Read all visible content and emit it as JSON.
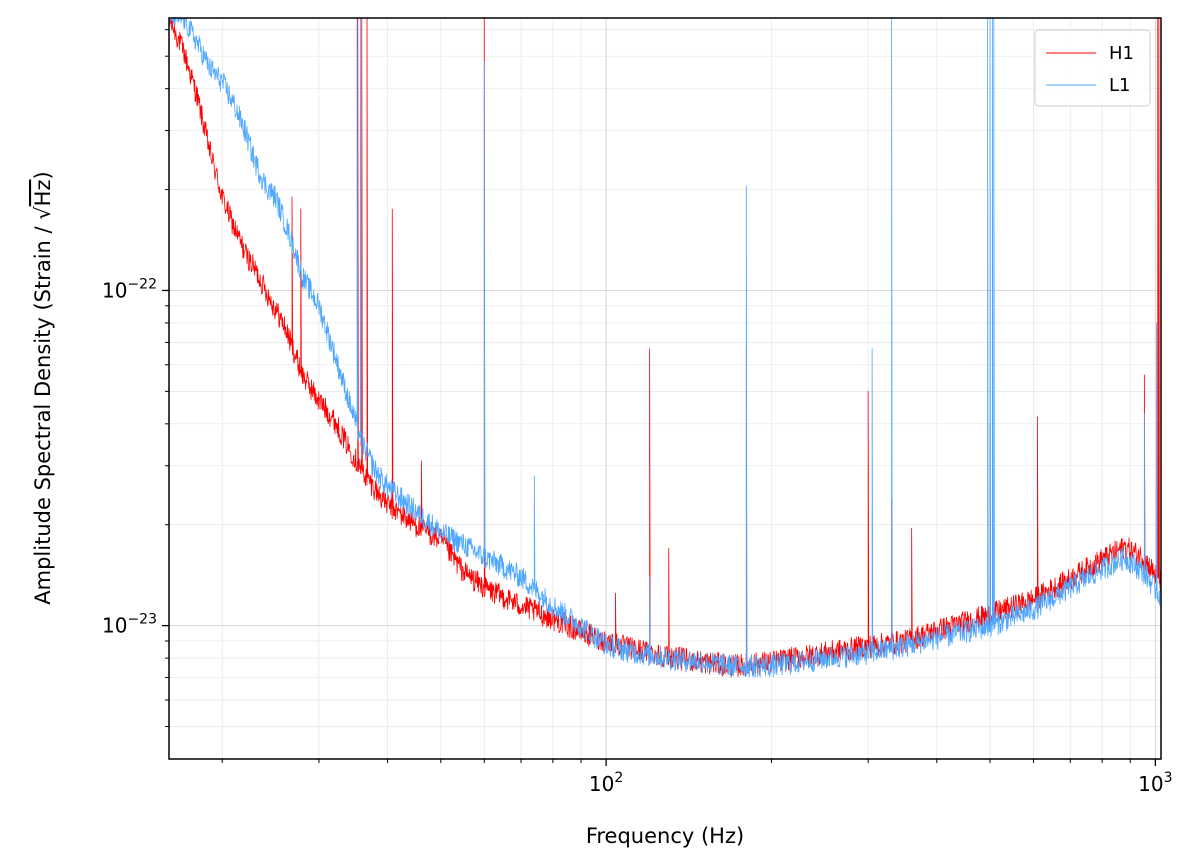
{
  "chart_data": {
    "type": "line",
    "xscale": "log",
    "yscale": "log",
    "xlim": [
      16,
      1024
    ],
    "ylim": [
      4e-24,
      6.5e-22
    ],
    "xlabel": "Frequency (Hz)",
    "ylabel": {
      "prefix": "Amplitude Spectral Density (Strain / ",
      "radical": "√",
      "radicand": "Hz",
      "suffix": ")"
    },
    "x_ticks": [
      {
        "value": 100,
        "base": "10",
        "exp": "2"
      },
      {
        "value": 1000,
        "base": "10",
        "exp": "3"
      }
    ],
    "y_ticks": [
      {
        "value": 1e-23,
        "base": "10",
        "exp": "−23"
      },
      {
        "value": 1e-22,
        "base": "10",
        "exp": "−22"
      }
    ],
    "grid": true,
    "legend_position": "top-right",
    "series": [
      {
        "name": "H1",
        "color": "#ff0000",
        "baseline": [
          [
            16,
            6.5e-22
          ],
          [
            17,
            5.2e-22
          ],
          [
            18,
            3.8e-22
          ],
          [
            19,
            2.6e-22
          ],
          [
            20,
            1.9e-22
          ],
          [
            21,
            1.55e-22
          ],
          [
            22,
            1.3e-22
          ],
          [
            23,
            1.15e-22
          ],
          [
            24,
            1e-22
          ],
          [
            25,
            8.8e-23
          ],
          [
            26,
            7.8e-23
          ],
          [
            27,
            6.6e-23
          ],
          [
            28,
            5.6e-23
          ],
          [
            30,
            4.7e-23
          ],
          [
            32,
            4.1e-23
          ],
          [
            34,
            3.4e-23
          ],
          [
            36,
            2.9e-23
          ],
          [
            38,
            2.55e-23
          ],
          [
            40,
            2.3e-23
          ],
          [
            45,
            2e-23
          ],
          [
            50,
            1.8e-23
          ],
          [
            55,
            1.45e-23
          ],
          [
            60,
            1.3e-23
          ],
          [
            70,
            1.15e-23
          ],
          [
            80,
            1.05e-23
          ],
          [
            90,
            9.6e-24
          ],
          [
            100,
            9e-24
          ],
          [
            110,
            8.6e-24
          ],
          [
            130,
            8.1e-24
          ],
          [
            150,
            7.8e-24
          ],
          [
            170,
            7.6e-24
          ],
          [
            200,
            7.8e-24
          ],
          [
            250,
            8.3e-24
          ],
          [
            300,
            8.7e-24
          ],
          [
            350,
            9e-24
          ],
          [
            400,
            9.7e-24
          ],
          [
            500,
            1.08e-23
          ],
          [
            600,
            1.2e-23
          ],
          [
            700,
            1.38e-23
          ],
          [
            800,
            1.58e-23
          ],
          [
            880,
            1.72e-23
          ],
          [
            950,
            1.6e-23
          ],
          [
            1024,
            1.35e-23
          ]
        ],
        "peaks": [
          [
            35.3,
            6.5e-22
          ],
          [
            35.9,
            6.5e-22
          ],
          [
            36.7,
            6.5e-22
          ],
          [
            60,
            6.5e-22
          ],
          [
            1010,
            6.5e-22
          ],
          [
            1015,
            6.5e-22
          ],
          [
            26.8,
            1.9e-22
          ],
          [
            27.8,
            1.75e-22
          ],
          [
            40.8,
            1.75e-22
          ],
          [
            46.1,
            3.1e-23
          ],
          [
            104,
            1.25e-23
          ],
          [
            120,
            6.7e-23
          ],
          [
            130,
            1.7e-23
          ],
          [
            180,
            6.7e-23
          ],
          [
            300,
            5e-23
          ],
          [
            331,
            2.4e-23
          ],
          [
            360,
            1.95e-23
          ],
          [
            500,
            4e-23
          ],
          [
            610,
            4.2e-23
          ],
          [
            955,
            5.6e-23
          ]
        ]
      },
      {
        "name": "L1",
        "color": "#4da6ff",
        "baseline": [
          [
            16,
            6.5e-22
          ],
          [
            17,
            6.5e-22
          ],
          [
            18,
            5.5e-22
          ],
          [
            19,
            4.6e-22
          ],
          [
            20,
            4.2e-22
          ],
          [
            21,
            3.6e-22
          ],
          [
            22,
            3e-22
          ],
          [
            23,
            2.4e-22
          ],
          [
            24,
            2.05e-22
          ],
          [
            25,
            1.9e-22
          ],
          [
            26,
            1.6e-22
          ],
          [
            27,
            1.35e-22
          ],
          [
            28,
            1.1e-22
          ],
          [
            30,
            9e-23
          ],
          [
            32,
            6.5e-23
          ],
          [
            34,
            4.7e-23
          ],
          [
            36,
            3.5e-23
          ],
          [
            38,
            2.9e-23
          ],
          [
            40,
            2.6e-23
          ],
          [
            45,
            2.2e-23
          ],
          [
            50,
            1.9e-23
          ],
          [
            55,
            1.75e-23
          ],
          [
            60,
            1.6e-23
          ],
          [
            65,
            1.5e-23
          ],
          [
            70,
            1.4e-23
          ],
          [
            80,
            1.15e-23
          ],
          [
            90,
            1e-23
          ],
          [
            100,
            8.8e-24
          ],
          [
            110,
            8.4e-24
          ],
          [
            130,
            8e-24
          ],
          [
            150,
            7.8e-24
          ],
          [
            170,
            7.6e-24
          ],
          [
            200,
            7.6e-24
          ],
          [
            250,
            8e-24
          ],
          [
            300,
            8.3e-24
          ],
          [
            350,
            8.7e-24
          ],
          [
            400,
            9.2e-24
          ],
          [
            500,
            1e-23
          ],
          [
            600,
            1.12e-23
          ],
          [
            700,
            1.3e-23
          ],
          [
            800,
            1.48e-23
          ],
          [
            880,
            1.6e-23
          ],
          [
            950,
            1.45e-23
          ],
          [
            1024,
            1.22e-23
          ]
        ],
        "peaks": [
          [
            35.2,
            6.5e-22
          ],
          [
            35.7,
            6.5e-22
          ],
          [
            60,
            4.8e-22
          ],
          [
            74,
            2.8e-23
          ],
          [
            120,
            1.4e-23
          ],
          [
            180,
            2.05e-22
          ],
          [
            305,
            6.7e-23
          ],
          [
            331,
            6.5e-22
          ],
          [
            495,
            6.5e-22
          ],
          [
            500,
            6.5e-22
          ],
          [
            505,
            6.5e-22
          ],
          [
            508,
            6.5e-22
          ],
          [
            1005,
            8e-23
          ],
          [
            955,
            4.3e-23
          ]
        ]
      }
    ]
  }
}
